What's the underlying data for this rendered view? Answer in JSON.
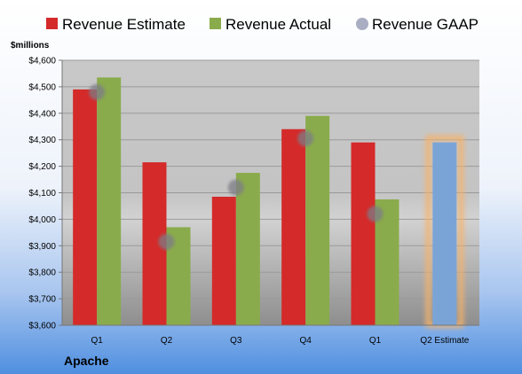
{
  "chart_data": {
    "type": "bar",
    "title": "",
    "company": "Apache",
    "ylabel": "$millions",
    "xlabel": "",
    "categories": [
      "Q1",
      "Q2",
      "Q3",
      "Q4",
      "Q1",
      "Q2 Estimate"
    ],
    "series": [
      {
        "name": "Revenue Estimate",
        "color": "#d42a2a",
        "values": [
          4490,
          4215,
          4085,
          4340,
          4290,
          null
        ]
      },
      {
        "name": "Revenue Actual",
        "color": "#8aab4c",
        "values": [
          4535,
          3970,
          4175,
          4390,
          4075,
          null
        ]
      },
      {
        "name": "Revenue GAAP",
        "color": "#a9aec3",
        "values": [
          4480,
          3915,
          4120,
          4305,
          4020,
          null
        ]
      }
    ],
    "projection": {
      "category": "Q2 Estimate",
      "value": 4290,
      "color": "#7ba4d6",
      "highlight": "#f6b36b"
    },
    "ylim": [
      3600,
      4600
    ],
    "yticks": [
      3600,
      3700,
      3800,
      3900,
      4000,
      4100,
      4200,
      4300,
      4400,
      4500,
      4600
    ],
    "ytick_labels": [
      "$3,600",
      "$3,700",
      "$3,800",
      "$3,900",
      "$4,000",
      "$4,100",
      "$4,200",
      "$4,300",
      "$4,400",
      "$4,500",
      "$4,600"
    ],
    "grid": true,
    "legend_position": "top"
  }
}
